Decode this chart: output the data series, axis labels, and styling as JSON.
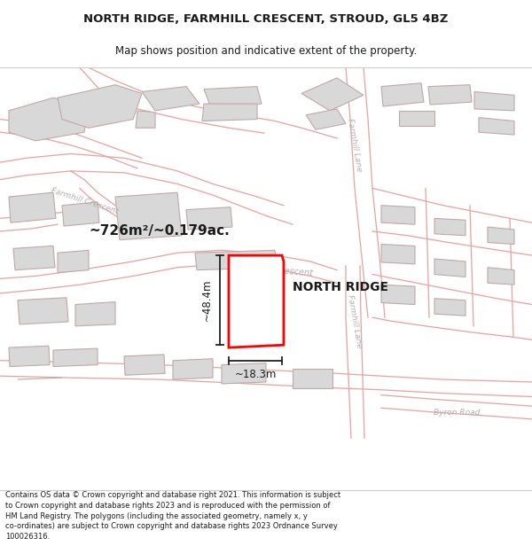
{
  "title_line1": "NORTH RIDGE, FARMHILL CRESCENT, STROUD, GL5 4BZ",
  "title_line2": "Map shows position and indicative extent of the property.",
  "footer_text": "Contains OS data © Crown copyright and database right 2021. This information is subject to Crown copyright and database rights 2023 and is reproduced with the permission of HM Land Registry. The polygons (including the associated geometry, namely x, y co-ordinates) are subject to Crown copyright and database rights 2023 Ordnance Survey 100026316.",
  "property_label": "NORTH RIDGE",
  "area_label": "~726m²/~0.179ac.",
  "dim_width": "~18.3m",
  "dim_height": "~48.4m",
  "bg_color": "#ffffff",
  "map_bg": "#ffffff",
  "road_line_color": "#e8a0a0",
  "building_fill": "#d8d8d8",
  "building_edge": "#c0a8a8",
  "highlight_color": "#ff0000",
  "text_color": "#1a1a1a",
  "dim_line_color": "#222222",
  "road_text_color": "#b0b0b0"
}
